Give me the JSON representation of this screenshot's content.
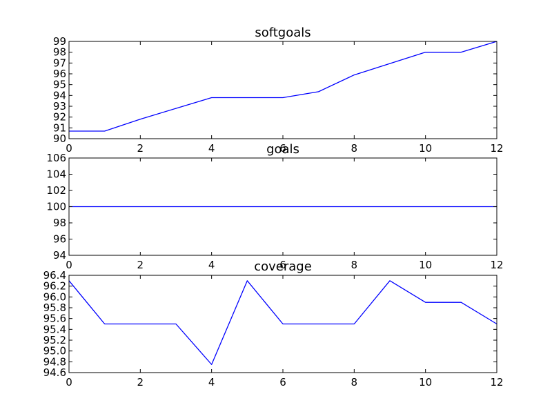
{
  "colors": {
    "line": "#0000ff",
    "axes": "#000000",
    "background": "#ffffff"
  },
  "chart_data": [
    {
      "type": "line",
      "title": "softgoals",
      "x": [
        0,
        1,
        2,
        3,
        4,
        5,
        6,
        7,
        8,
        9,
        10,
        11,
        12
      ],
      "series": [
        {
          "values": [
            90.7,
            90.7,
            91.8,
            92.8,
            93.8,
            93.8,
            93.8,
            94.35,
            95.9,
            96.95,
            98.0,
            98.0,
            99.0
          ]
        }
      ],
      "xlim": [
        0,
        12
      ],
      "ylim": [
        90,
        99
      ],
      "xticks": [
        0,
        2,
        4,
        6,
        8,
        10,
        12
      ],
      "yticks": [
        90,
        91,
        92,
        93,
        94,
        95,
        96,
        97,
        98,
        99
      ],
      "ytick_labels": [
        "90",
        "91",
        "92",
        "93",
        "94",
        "95",
        "96",
        "97",
        "98",
        "99"
      ],
      "grid": false
    },
    {
      "type": "line",
      "title": "goals",
      "x": [
        0,
        1,
        2,
        3,
        4,
        5,
        6,
        7,
        8,
        9,
        10,
        11,
        12
      ],
      "series": [
        {
          "values": [
            100,
            100,
            100,
            100,
            100,
            100,
            100,
            100,
            100,
            100,
            100,
            100,
            100
          ]
        }
      ],
      "xlim": [
        0,
        12
      ],
      "ylim": [
        94,
        106
      ],
      "xticks": [
        0,
        2,
        4,
        6,
        8,
        10,
        12
      ],
      "yticks": [
        94,
        96,
        98,
        100,
        102,
        104,
        106
      ],
      "ytick_labels": [
        "94",
        "96",
        "98",
        "100",
        "102",
        "104",
        "106"
      ],
      "grid": false
    },
    {
      "type": "line",
      "title": "coverage",
      "x": [
        0,
        1,
        2,
        3,
        4,
        5,
        6,
        7,
        8,
        9,
        10,
        11,
        12
      ],
      "series": [
        {
          "values": [
            96.3,
            95.5,
            95.5,
            95.5,
            94.75,
            96.3,
            95.5,
            95.5,
            95.5,
            96.3,
            95.9,
            95.9,
            95.5
          ]
        }
      ],
      "xlim": [
        0,
        12
      ],
      "ylim": [
        94.6,
        96.4
      ],
      "xticks": [
        0,
        2,
        4,
        6,
        8,
        10,
        12
      ],
      "yticks": [
        94.6,
        94.8,
        95.0,
        95.2,
        95.4,
        95.6,
        95.8,
        96.0,
        96.2,
        96.4
      ],
      "ytick_labels": [
        "94.6",
        "94.8",
        "95.0",
        "95.2",
        "95.4",
        "95.6",
        "95.8",
        "96.0",
        "96.2",
        "96.4"
      ],
      "grid": false
    }
  ]
}
